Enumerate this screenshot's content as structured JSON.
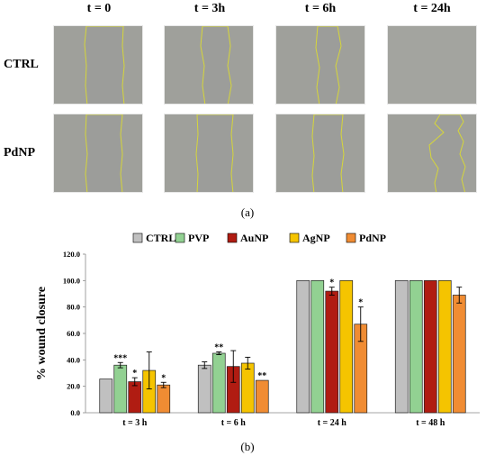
{
  "panel_a": {
    "time_labels": [
      "t = 0",
      "t = 3h",
      "t = 6h",
      "t = 24h"
    ],
    "row_labels": [
      "CTRL",
      "PdNP"
    ],
    "caption": "(a)"
  },
  "panel_b": {
    "caption": "(b)"
  },
  "colors": {
    "CTRL": "#c0c0c0",
    "PVP": "#92d192",
    "AuNP": "#b01c12",
    "AgNP": "#f5c400",
    "PdNP": "#f08c33",
    "wound_edge": "#d6d63a"
  },
  "chart_data": {
    "type": "bar",
    "ylabel": "% wound closure",
    "ylim": [
      0,
      120
    ],
    "yticks": [
      "0.0",
      "20.0",
      "40.0",
      "60.0",
      "80.0",
      "100.0",
      "120.0"
    ],
    "legend_position": "top",
    "categories": [
      "t = 3 h",
      "t = 6 h",
      "t = 24 h",
      "t = 48 h"
    ],
    "series": [
      {
        "name": "CTRL",
        "values": [
          25.5,
          36,
          100,
          100
        ],
        "errors": [
          0,
          2.5,
          0,
          0
        ],
        "marks": [
          "",
          "",
          "",
          ""
        ]
      },
      {
        "name": "PVP",
        "values": [
          36,
          45,
          100,
          100
        ],
        "errors": [
          2,
          1,
          0,
          0
        ],
        "marks": [
          "***",
          "**",
          "",
          ""
        ]
      },
      {
        "name": "AuNP",
        "values": [
          23.5,
          35,
          92,
          100
        ],
        "errors": [
          3,
          12,
          3,
          0
        ],
        "marks": [
          "*",
          "",
          "*",
          ""
        ]
      },
      {
        "name": "AgNP",
        "values": [
          32,
          37.5,
          100,
          100
        ],
        "errors": [
          14,
          4.5,
          0,
          0
        ],
        "marks": [
          "",
          "",
          "",
          ""
        ]
      },
      {
        "name": "PdNP",
        "values": [
          21,
          24.5,
          67,
          89
        ],
        "errors": [
          2,
          0,
          13,
          6
        ],
        "marks": [
          "*",
          "**",
          "*",
          ""
        ]
      }
    ]
  }
}
